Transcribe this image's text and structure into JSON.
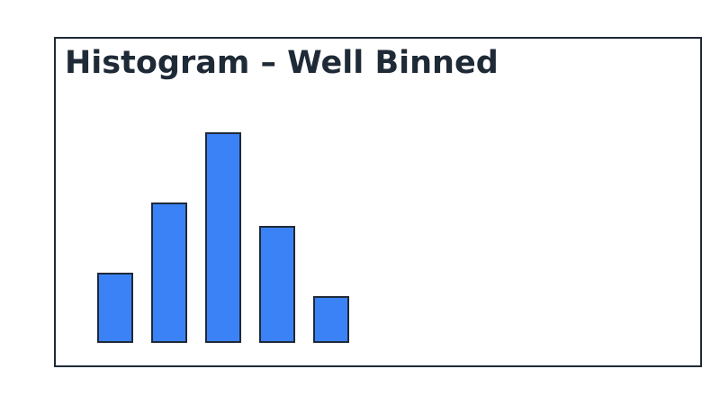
{
  "window": {
    "background": "#ffffff"
  },
  "chart_data": {
    "type": "bar",
    "chart_kind": "histogram",
    "title": "Histogram – Well Binned",
    "values": [
      3,
      6,
      9,
      5,
      2
    ],
    "xlabel": "",
    "ylabel": "",
    "axes_visible": false,
    "tick_labels_visible": false,
    "grid": false,
    "legend": null,
    "title_align": "left",
    "colors": {
      "bar_fill": "#3b82f6",
      "bar_edge": "#1f2a37",
      "frame_border": "#1f2a37",
      "title_color": "#1f2a37",
      "background": "#ffffff"
    }
  }
}
